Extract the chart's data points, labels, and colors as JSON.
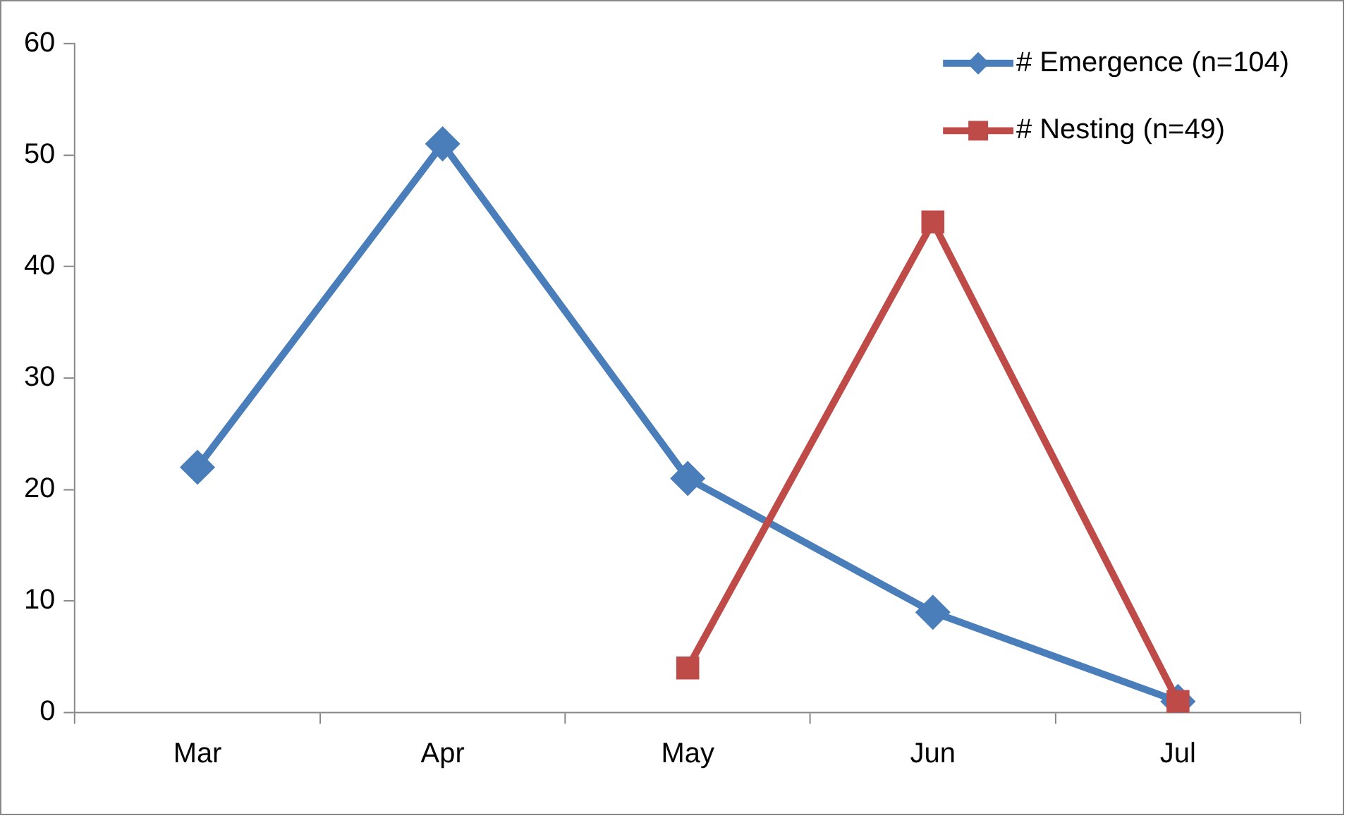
{
  "chart_data": {
    "type": "line",
    "categories": [
      "Mar",
      "Apr",
      "May",
      "Jun",
      "Jul"
    ],
    "series": [
      {
        "name": "# Emergence (n=104)",
        "color": "#4a7ebb",
        "marker": "diamond",
        "values": [
          22,
          51,
          21,
          9,
          1
        ]
      },
      {
        "name": "# Nesting (n=49)",
        "color": "#be4b48",
        "marker": "square",
        "values": [
          null,
          null,
          4,
          44,
          1
        ]
      }
    ],
    "ylim": [
      0,
      60
    ],
    "yticks": [
      0,
      10,
      20,
      30,
      40,
      50,
      60
    ],
    "grid": false,
    "legend": "top right",
    "line_style": "solid"
  }
}
